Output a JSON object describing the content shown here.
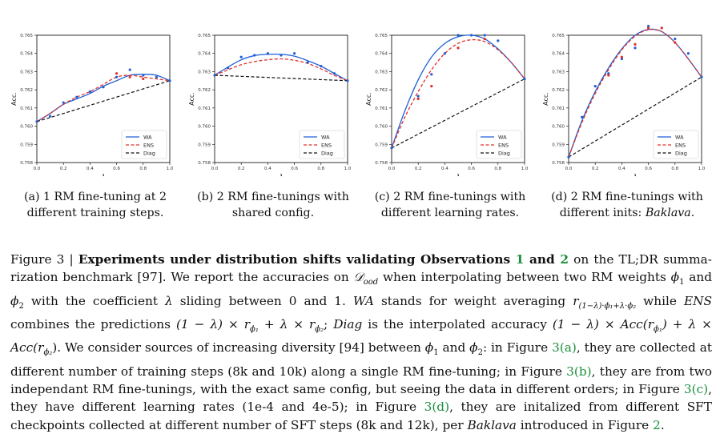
{
  "chart_data": [
    {
      "type": "line",
      "xlabel": "λ",
      "ylabel": "Acc.",
      "xlim": [
        0.0,
        1.0
      ],
      "ylim": [
        0.758,
        0.765
      ],
      "xticks": [
        "0.0",
        "0.2",
        "0.4",
        "0.6",
        "0.8",
        "1.0"
      ],
      "yticks": [
        "0.758",
        "0.759",
        "0.760",
        "0.761",
        "0.762",
        "0.763",
        "0.764",
        "0.765"
      ],
      "legend": [
        "WA",
        "ENS",
        "Diag"
      ],
      "legend_position": "lower-right",
      "caption": "(a) 1 RM fine-tuning at 2 different training steps.",
      "series": [
        {
          "name": "WA",
          "color": "#1f5fd6",
          "style": "solid",
          "x": [
            0,
            0.1,
            0.2,
            0.3,
            0.4,
            0.5,
            0.6,
            0.7,
            0.8,
            0.9,
            1.0
          ],
          "y": [
            0.76025,
            0.7607,
            0.7612,
            0.7615,
            0.7618,
            0.7622,
            0.7625,
            0.7628,
            0.76285,
            0.7628,
            0.7625
          ]
        },
        {
          "name": "ENS",
          "color": "#e0302a",
          "style": "dashed",
          "x": [
            0,
            0.1,
            0.2,
            0.3,
            0.4,
            0.5,
            0.6,
            0.7,
            0.8,
            0.9,
            1.0
          ],
          "y": [
            0.76025,
            0.7607,
            0.7612,
            0.7616,
            0.7619,
            0.7623,
            0.7627,
            0.7628,
            0.7627,
            0.7626,
            0.7625
          ]
        },
        {
          "name": "Diag",
          "color": "#111111",
          "style": "dashed",
          "x": [
            0,
            1.0
          ],
          "y": [
            0.76025,
            0.7625
          ]
        },
        {
          "name": "WA points",
          "color": "#1f5fd6",
          "style": "points",
          "x": [
            0,
            0.1,
            0.2,
            0.3,
            0.4,
            0.5,
            0.6,
            0.7,
            0.8,
            0.9,
            1.0
          ],
          "y": [
            0.76025,
            0.76055,
            0.7613,
            0.7616,
            0.7619,
            0.76215,
            0.7627,
            0.7631,
            0.7628,
            0.7627,
            0.7625
          ]
        },
        {
          "name": "ENS points",
          "color": "#e0302a",
          "style": "points",
          "x": [
            0.6,
            0.7,
            0.8
          ],
          "y": [
            0.7629,
            0.7627,
            0.7626
          ]
        }
      ]
    },
    {
      "type": "line",
      "xlabel": "λ",
      "ylabel": "Acc.",
      "xlim": [
        0.0,
        1.0
      ],
      "ylim": [
        0.758,
        0.765
      ],
      "xticks": [
        "0.0",
        "0.2",
        "0.4",
        "0.6",
        "0.8",
        "1.0"
      ],
      "yticks": [
        "0.758",
        "0.759",
        "0.760",
        "0.761",
        "0.762",
        "0.763",
        "0.764",
        "0.765"
      ],
      "legend": [
        "WA",
        "ENS",
        "Diag"
      ],
      "legend_position": "lower-right",
      "caption": "(b) 2 RM fine-tunings with shared config.",
      "series": [
        {
          "name": "WA",
          "color": "#1f5fd6",
          "style": "solid",
          "x": [
            0,
            0.1,
            0.2,
            0.3,
            0.4,
            0.5,
            0.6,
            0.7,
            0.8,
            0.9,
            1.0
          ],
          "y": [
            0.7628,
            0.76325,
            0.76365,
            0.76388,
            0.76395,
            0.76395,
            0.76385,
            0.7636,
            0.7633,
            0.7629,
            0.7625
          ]
        },
        {
          "name": "ENS",
          "color": "#e0302a",
          "style": "dashed",
          "x": [
            0,
            0.1,
            0.2,
            0.3,
            0.4,
            0.5,
            0.6,
            0.7,
            0.8,
            0.9,
            1.0
          ],
          "y": [
            0.7628,
            0.7631,
            0.76338,
            0.76355,
            0.76365,
            0.7637,
            0.76362,
            0.76345,
            0.76315,
            0.7628,
            0.7625
          ]
        },
        {
          "name": "Diag",
          "color": "#111111",
          "style": "dashed",
          "x": [
            0,
            1.0
          ],
          "y": [
            0.7628,
            0.7625
          ]
        },
        {
          "name": "WA points",
          "color": "#1f5fd6",
          "style": "points",
          "x": [
            0,
            0.1,
            0.2,
            0.3,
            0.4,
            0.5,
            0.6,
            0.7,
            0.8,
            0.9,
            1.0
          ],
          "y": [
            0.7628,
            0.7632,
            0.7638,
            0.7639,
            0.764,
            0.7639,
            0.764,
            0.7635,
            0.7633,
            0.7629,
            0.7625
          ]
        }
      ]
    },
    {
      "type": "line",
      "xlabel": "λ",
      "ylabel": "Acc.",
      "xlim": [
        0.0,
        1.0
      ],
      "ylim": [
        0.758,
        0.765
      ],
      "xticks": [
        "0.0",
        "0.2",
        "0.4",
        "0.6",
        "0.8",
        "1.0"
      ],
      "yticks": [
        "0.758",
        "0.759",
        "0.760",
        "0.761",
        "0.762",
        "0.763",
        "0.764",
        "0.765"
      ],
      "legend": [
        "WA",
        "ENS",
        "Diag"
      ],
      "legend_position": "lower-right",
      "caption": "(c) 2 RM fine-tunings with different learning rates.",
      "series": [
        {
          "name": "WA",
          "color": "#1f5fd6",
          "style": "solid",
          "x": [
            0,
            0.1,
            0.2,
            0.3,
            0.4,
            0.5,
            0.6,
            0.7,
            0.8,
            0.9,
            1.0
          ],
          "y": [
            0.7588,
            0.76085,
            0.76255,
            0.7638,
            0.76455,
            0.76492,
            0.765,
            0.7648,
            0.76425,
            0.7635,
            0.7626
          ]
        },
        {
          "name": "ENS",
          "color": "#e0302a",
          "style": "dashed",
          "x": [
            0,
            0.1,
            0.2,
            0.3,
            0.4,
            0.5,
            0.6,
            0.7,
            0.8,
            0.9,
            1.0
          ],
          "y": [
            0.7588,
            0.7605,
            0.7619,
            0.7631,
            0.764,
            0.76455,
            0.76475,
            0.76465,
            0.7642,
            0.7635,
            0.7626
          ]
        },
        {
          "name": "Diag",
          "color": "#111111",
          "style": "dashed",
          "x": [
            0,
            1.0
          ],
          "y": [
            0.7588,
            0.7626
          ]
        },
        {
          "name": "WA points",
          "color": "#1f5fd6",
          "style": "points",
          "x": [
            0,
            0.2,
            0.3,
            0.4,
            0.5,
            0.6,
            0.7,
            0.8,
            1.0
          ],
          "y": [
            0.7588,
            0.76165,
            0.76285,
            0.764,
            0.765,
            0.765,
            0.765,
            0.7647,
            0.7626
          ]
        },
        {
          "name": "ENS points",
          "color": "#e0302a",
          "style": "points",
          "x": [
            0.2,
            0.3,
            0.5,
            0.7
          ],
          "y": [
            0.7615,
            0.7622,
            0.7643,
            0.7648
          ]
        }
      ]
    },
    {
      "type": "line",
      "xlabel": "λ",
      "ylabel": "Acc.",
      "xlim": [
        0.0,
        1.0
      ],
      "ylim": [
        0.758,
        0.765
      ],
      "xticks": [
        "0.0",
        "0.2",
        "0.4",
        "0.6",
        "0.8",
        "1.0"
      ],
      "yticks": [
        "0.758",
        "0.759",
        "0.760",
        "0.761",
        "0.762",
        "0.763",
        "0.764",
        "0.765"
      ],
      "legend": [
        "WA",
        "ENS",
        "Diag"
      ],
      "legend_position": "lower-right",
      "caption": "(d) 2 RM fine-tunings with different inits: Baklava.",
      "series": [
        {
          "name": "WA",
          "color": "#1f5fd6",
          "style": "solid",
          "x": [
            0,
            0.1,
            0.2,
            0.3,
            0.4,
            0.5,
            0.6,
            0.7,
            0.8,
            0.9,
            1.0
          ],
          "y": [
            0.7583,
            0.7603,
            0.7619,
            0.7632,
            0.76425,
            0.765,
            0.76532,
            0.7652,
            0.7646,
            0.7637,
            0.7627
          ]
        },
        {
          "name": "ENS",
          "color": "#e0302a",
          "style": "dashed",
          "x": [
            0,
            0.1,
            0.2,
            0.3,
            0.4,
            0.5,
            0.6,
            0.7,
            0.8,
            0.9,
            1.0
          ],
          "y": [
            0.7583,
            0.7602,
            0.7618,
            0.7631,
            0.7642,
            0.76495,
            0.7653,
            0.7652,
            0.7646,
            0.7637,
            0.7627
          ]
        },
        {
          "name": "Diag",
          "color": "#111111",
          "style": "dashed",
          "x": [
            0,
            1.0
          ],
          "y": [
            0.7583,
            0.7627
          ]
        },
        {
          "name": "WA points",
          "color": "#1f5fd6",
          "style": "points",
          "x": [
            0,
            0.1,
            0.2,
            0.3,
            0.4,
            0.5,
            0.6,
            0.7,
            0.8,
            0.9,
            1.0
          ],
          "y": [
            0.7583,
            0.7605,
            0.7622,
            0.7629,
            0.7637,
            0.7643,
            0.7655,
            0.7654,
            0.7648,
            0.764,
            0.7627
          ]
        },
        {
          "name": "ENS points",
          "color": "#e0302a",
          "style": "points",
          "x": [
            0.3,
            0.4,
            0.5,
            0.6,
            0.7,
            0.8
          ],
          "y": [
            0.7628,
            0.7638,
            0.7645,
            0.7654,
            0.7654,
            0.7646
          ]
        }
      ]
    }
  ],
  "captions": {
    "a": {
      "l1": "(a) 1 RM fine-tuning at 2",
      "l2": "different training steps."
    },
    "b": {
      "l1": "(b) 2 RM fine-tunings with",
      "l2": "shared config."
    },
    "c": {
      "l1": "(c) 2 RM fine-tunings with",
      "l2": "different learning rates."
    },
    "d": {
      "l1": "(d) 2 RM fine-tunings with",
      "l2": "different inits: ",
      "l2_it": "Baklava",
      "l2_end": "."
    }
  },
  "figure_caption": {
    "label": "Figure 3 | ",
    "bold1": "Experiments under distribution shifts validating Observations ",
    "ref1": "1",
    "bold2": " and ",
    "ref2": "2",
    "t1": " on the TL;DR summa-rization benchmark [97]. We report the accuracies on ",
    "dood": "𝒟",
    "dood_sub": "ood",
    "t2": " when interpolating between two RM weights ",
    "phi1": "ϕ",
    "t3": " and ",
    "t4": " with the coefficient ",
    "lambda": "λ",
    "t5": " sliding between 0 and 1. ",
    "wa": "WA",
    "t6": " stands for weight averaging ",
    "wa_formula": "r",
    "wa_sub": "(1−λ)·ϕ₁+λ·ϕ₂",
    "t7": " while ",
    "ens": "ENS",
    "t8": " combines the predictions ",
    "ens_formula": "(1 − λ) × r",
    "ens_sub1": "ϕ₁",
    "ens_mid": " + λ × r",
    "ens_sub2": "ϕ₂",
    "t9": "; ",
    "diag": "Diag",
    "t10": " is the interpolated accuracy ",
    "diag_formula": "(1 − λ) × Acc(r",
    "diag_sub1": "ϕ₁",
    "diag_mid": ") + λ × Acc(r",
    "diag_sub2": "ϕ₂",
    "diag_end": ").",
    "t11": " We consider sources of increasing diversity [94] between ",
    "t12": " and ",
    "t13": ": in Figure ",
    "fa": "3(a)",
    "t14": ", they are collected at different number of training steps (8k and 10k) along a single RM fine-tuning; in Figure ",
    "fb": "3(b)",
    "t15": ", they are from two independant RM fine-tunings, with the exact same config, but seeing the data in different orders; in Figure ",
    "fc": "3(c)",
    "t16": ", they have different learning rates (1e-4 and 4e-5); in Figure ",
    "fd": "3(d)",
    "t17": ", they are initalized from different SFT checkpoints collected at different number of SFT steps (8k and 12k), per ",
    "baklava": "Baklava",
    "t18": " introduced in Figure ",
    "f2": "2",
    "t19": "."
  }
}
